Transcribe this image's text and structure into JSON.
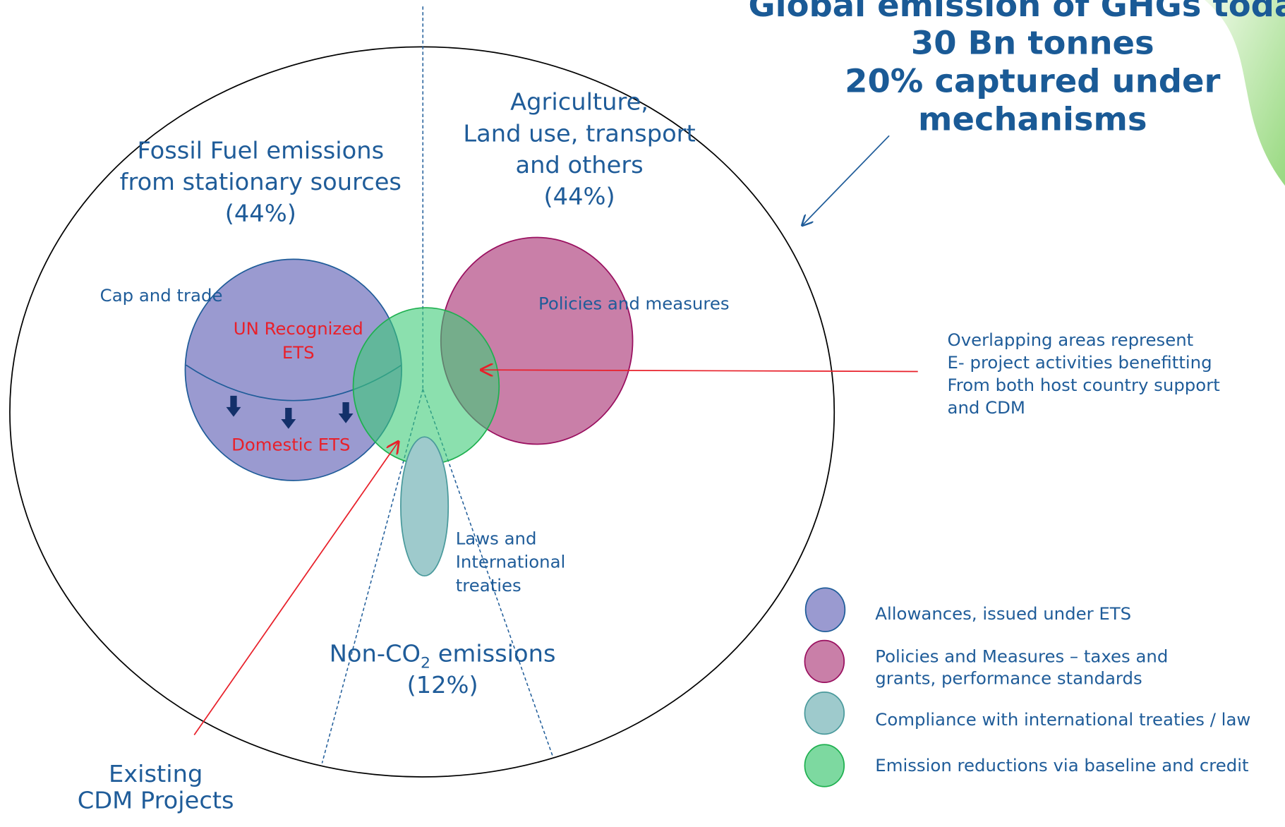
{
  "title": {
    "lines": [
      "Global emission of GHGs today",
      "30 Bn tonnes",
      "20% captured under",
      "mechanisms"
    ]
  },
  "sectors": [
    {
      "lines": [
        "Fossil Fuel emissions",
        "from stationary sources",
        "(44%)"
      ]
    },
    {
      "lines": [
        "Agriculture,",
        "Land use, transport",
        "and others",
        "(44%)"
      ]
    },
    {
      "prefix": "Non-CO",
      "subscript": "2",
      "suffix": " emissions",
      "share": "(12%)"
    }
  ],
  "circles": {
    "cap_and_trade": "Cap and trade",
    "un_recognized": [
      "UN Recognized",
      "ETS"
    ],
    "domestic": "Domestic ETS",
    "policies": "Policies and measures",
    "laws": [
      "Laws and",
      "International",
      "treaties"
    ]
  },
  "annotations": {
    "overlap": [
      "Overlapping areas represent",
      "E- project activities benefitting",
      "From both host country support",
      "and CDM"
    ],
    "cdm": [
      "Existing",
      "CDM Projects"
    ]
  },
  "legend": [
    {
      "lines": [
        "Allowances, issued under ETS"
      ]
    },
    {
      "lines": [
        "Policies and Measures – taxes and",
        "grants, performance standards"
      ]
    },
    {
      "lines": [
        "Compliance with international treaties / law"
      ]
    },
    {
      "lines": [
        "Emission reductions via  baseline and credit"
      ]
    }
  ]
}
